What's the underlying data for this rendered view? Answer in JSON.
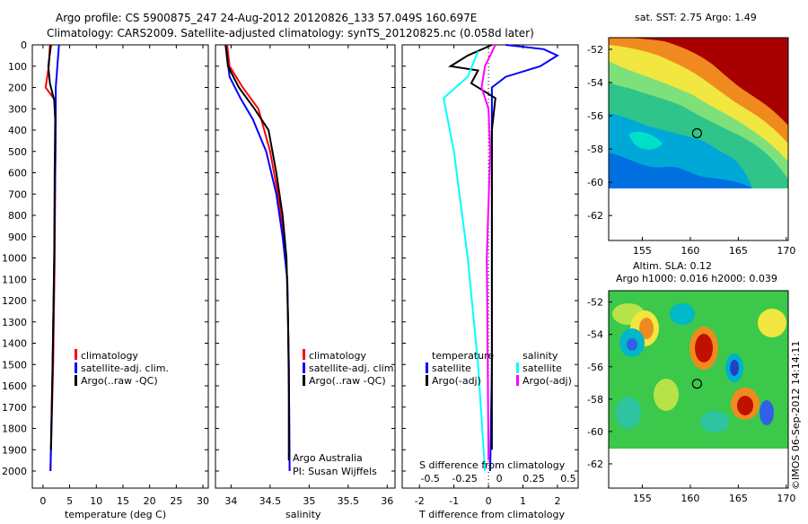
{
  "header": {
    "line1": "Argo profile: CS 5900875_247 24-Aug-2012 20120826_133 57.049S 160.697E",
    "line2": "Climatology: CARS2009. Satellite-adjusted climatology: synTS_20120825.nc (0.058d later)"
  },
  "colors": {
    "climatology": "#ff0000",
    "satellite": "#0000ff",
    "argo": "#000000",
    "sat_salinity": "#00ffff",
    "argo_salinity": "#ff00ff"
  },
  "chart_data": [
    {
      "type": "line",
      "id": "temperature",
      "xlabel": "temperature (deg C)",
      "ylabel": "",
      "xlim": [
        -2,
        31
      ],
      "ylim": [
        2080,
        0
      ],
      "xticks": [
        0,
        5,
        10,
        15,
        20,
        25,
        30
      ],
      "yticks": [
        0,
        100,
        200,
        300,
        400,
        500,
        600,
        700,
        800,
        900,
        1000,
        1100,
        1200,
        1300,
        1400,
        1500,
        1600,
        1700,
        1800,
        1900,
        2000
      ],
      "series": [
        {
          "name": "climatology",
          "color": "#ff0000",
          "points": [
            [
              1.3,
              0
            ],
            [
              1.1,
              100
            ],
            [
              0.5,
              200
            ],
            [
              2.3,
              260
            ],
            [
              2.4,
              350
            ],
            [
              2.3,
              600
            ],
            [
              2.2,
              1000
            ],
            [
              1.9,
              1500
            ],
            [
              1.4,
              2000
            ]
          ]
        },
        {
          "name": "satellite-adj. clim.",
          "color": "#0000ff",
          "points": [
            [
              3.0,
              0
            ],
            [
              2.7,
              100
            ],
            [
              2.4,
              200
            ],
            [
              2.4,
              350
            ],
            [
              2.3,
              600
            ],
            [
              2.1,
              1000
            ],
            [
              1.8,
              1500
            ],
            [
              1.4,
              2000
            ]
          ]
        },
        {
          "name": "Argo(..raw -QC)",
          "color": "#000000",
          "points": [
            [
              1.5,
              0
            ],
            [
              1.0,
              100
            ],
            [
              1.3,
              180
            ],
            [
              2.1,
              260
            ],
            [
              2.3,
              350
            ],
            [
              2.2,
              600
            ],
            [
              2.1,
              1000
            ],
            [
              1.8,
              1500
            ],
            [
              1.5,
              1900
            ]
          ]
        }
      ],
      "legend": [
        "climatology",
        "satellite-adj. clim.",
        "Argo(..raw -QC)"
      ]
    },
    {
      "type": "line",
      "id": "salinity",
      "xlabel": "salinity",
      "ylabel": "",
      "xlim": [
        33.8,
        36.1
      ],
      "ylim": [
        2080,
        0
      ],
      "xticks": [
        34,
        34.5,
        35,
        35.5,
        36
      ],
      "series": [
        {
          "name": "climatology",
          "color": "#ff0000",
          "points": [
            [
              33.95,
              0
            ],
            [
              33.98,
              100
            ],
            [
              34.15,
              200
            ],
            [
              34.35,
              300
            ],
            [
              34.5,
              500
            ],
            [
              34.6,
              700
            ],
            [
              34.68,
              900
            ],
            [
              34.72,
              1100
            ],
            [
              34.74,
              1500
            ],
            [
              34.75,
              2000
            ]
          ]
        },
        {
          "name": "satellite-adj. clim.",
          "color": "#0000ff",
          "points": [
            [
              33.93,
              0
            ],
            [
              33.98,
              150
            ],
            [
              34.12,
              250
            ],
            [
              34.28,
              350
            ],
            [
              34.45,
              500
            ],
            [
              34.58,
              700
            ],
            [
              34.66,
              900
            ],
            [
              34.72,
              1100
            ],
            [
              34.74,
              1500
            ],
            [
              34.75,
              2000
            ]
          ]
        },
        {
          "name": "Argo(..raw -QC)",
          "color": "#000000",
          "points": [
            [
              33.93,
              0
            ],
            [
              33.96,
              100
            ],
            [
              34.1,
              200
            ],
            [
              34.3,
              300
            ],
            [
              34.48,
              400
            ],
            [
              34.58,
              600
            ],
            [
              34.66,
              800
            ],
            [
              34.71,
              1000
            ],
            [
              34.73,
              1300
            ],
            [
              34.74,
              1600
            ],
            [
              34.74,
              1950
            ]
          ]
        }
      ],
      "legend": [
        "climatology",
        "satellite-adj. clim.",
        "Argo(..raw -QC)"
      ],
      "annotations": [
        "Argo Australia",
        "PI: Susan Wijffels"
      ]
    },
    {
      "type": "line",
      "id": "difference",
      "xlabel": "T difference from climatology",
      "xlabel2": "S difference from climatology",
      "xlim": [
        -2.5,
        2.6
      ],
      "ylim": [
        2080,
        0
      ],
      "xticks": [
        -2,
        -1,
        0,
        1,
        2
      ],
      "xticks2": [
        "-0.5",
        "-0.25",
        "0",
        "0.25",
        "0.5"
      ],
      "series": [
        {
          "name": "temperature satellite",
          "color": "#0000ff",
          "points": [
            [
              0.5,
              0
            ],
            [
              1.6,
              20
            ],
            [
              2.0,
              50
            ],
            [
              1.5,
              100
            ],
            [
              0.5,
              150
            ],
            [
              0.1,
              200
            ],
            [
              0.1,
              400
            ],
            [
              0.1,
              1000
            ],
            [
              0.1,
              1500
            ],
            [
              0.05,
              2000
            ]
          ]
        },
        {
          "name": "temperature Argo(-adj)",
          "color": "#000000",
          "points": [
            [
              0.1,
              0
            ],
            [
              -0.6,
              50
            ],
            [
              -1.1,
              100
            ],
            [
              -0.3,
              120
            ],
            [
              -0.5,
              180
            ],
            [
              0.2,
              250
            ],
            [
              0.1,
              400
            ],
            [
              0.1,
              1000
            ],
            [
              0.1,
              1500
            ],
            [
              0.1,
              1900
            ]
          ]
        },
        {
          "name": "salinity satellite",
          "color": "#00ffff",
          "points": [
            [
              -0.3,
              30
            ],
            [
              -0.6,
              150
            ],
            [
              -1.3,
              250
            ],
            [
              -1.0,
              500
            ],
            [
              -0.6,
              1000
            ],
            [
              -0.3,
              1500
            ],
            [
              -0.1,
              2000
            ]
          ]
        },
        {
          "name": "salinity Argo(-adj)",
          "color": "#ff00ff",
          "points": [
            [
              0.2,
              0
            ],
            [
              -0.1,
              100
            ],
            [
              -0.2,
              200
            ],
            [
              0.0,
              300
            ],
            [
              0.05,
              500
            ],
            [
              -0.05,
              1000
            ],
            [
              -0.02,
              1500
            ],
            [
              0.0,
              1950
            ]
          ]
        }
      ],
      "legend_titles": [
        "temperature",
        "salinity"
      ],
      "legend": [
        "satellite",
        "Argo(-adj)",
        "satellite",
        "Argo(-adj)"
      ]
    },
    {
      "type": "heatmap",
      "id": "sst_map",
      "title": "sat. SST: 2.75 Argo: 1.49",
      "xlim": [
        151.5,
        170.2
      ],
      "ylim": [
        -63.5,
        -51.3
      ],
      "xticks": [
        155,
        160,
        165,
        170
      ],
      "yticks": [
        -52,
        -54,
        -56,
        -58,
        -60,
        -62
      ],
      "profile_location": [
        160.697,
        -57.049
      ]
    },
    {
      "type": "heatmap",
      "id": "sla_map",
      "title": "Altim. SLA: 0.12",
      "subtitle": "Argo h1000: 0.016 h2000: 0.039",
      "xlim": [
        151.5,
        170.2
      ],
      "ylim": [
        -63.5,
        -51.3
      ],
      "xticks": [
        155,
        160,
        165,
        170
      ],
      "yticks": [
        -52,
        -54,
        -56,
        -58,
        -60,
        -62
      ],
      "profile_location": [
        160.697,
        -57.049
      ]
    }
  ],
  "footer": {
    "credit": "©IMOS 06-Sep-2012 14:14:11"
  }
}
